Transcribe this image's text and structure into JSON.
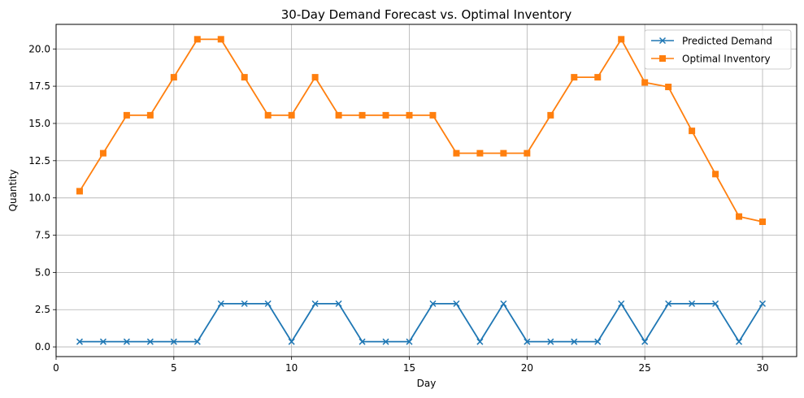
{
  "chart_data": {
    "type": "line",
    "title": "30-Day Demand Forecast vs. Optimal Inventory",
    "xlabel": "Day",
    "ylabel": "Quantity",
    "xlim": [
      0,
      31.45
    ],
    "ylim": [
      -0.65,
      21.65
    ],
    "xticks": [
      0,
      5,
      10,
      15,
      20,
      25,
      30
    ],
    "yticks": [
      0.0,
      2.5,
      5.0,
      7.5,
      10.0,
      12.5,
      15.0,
      17.5,
      20.0
    ],
    "grid": true,
    "legend_position": "top-right",
    "x": [
      1,
      2,
      3,
      4,
      5,
      6,
      7,
      8,
      9,
      10,
      11,
      12,
      13,
      14,
      15,
      16,
      17,
      18,
      19,
      20,
      21,
      22,
      23,
      24,
      25,
      26,
      27,
      28,
      29,
      30
    ],
    "series": [
      {
        "name": "Predicted Demand",
        "color": "#1f77b4",
        "marker": "x",
        "values": [
          0.35,
          0.35,
          0.35,
          0.35,
          0.35,
          0.35,
          2.9,
          2.9,
          2.9,
          0.35,
          2.9,
          2.9,
          0.35,
          0.35,
          0.35,
          2.9,
          2.9,
          0.35,
          2.9,
          0.35,
          0.35,
          0.35,
          0.35,
          2.9,
          0.35,
          2.9,
          2.9,
          2.9,
          0.35,
          2.9
        ]
      },
      {
        "name": "Optimal Inventory",
        "color": "#ff7f0e",
        "marker": "square",
        "values": [
          10.45,
          13.0,
          15.55,
          15.55,
          18.1,
          20.65,
          20.65,
          18.1,
          15.55,
          15.55,
          18.1,
          15.55,
          15.55,
          15.55,
          15.55,
          15.55,
          13.0,
          13.0,
          13.0,
          13.0,
          15.55,
          18.1,
          18.1,
          20.65,
          17.75,
          17.45,
          14.5,
          11.6,
          8.75,
          8.4
        ]
      }
    ]
  }
}
